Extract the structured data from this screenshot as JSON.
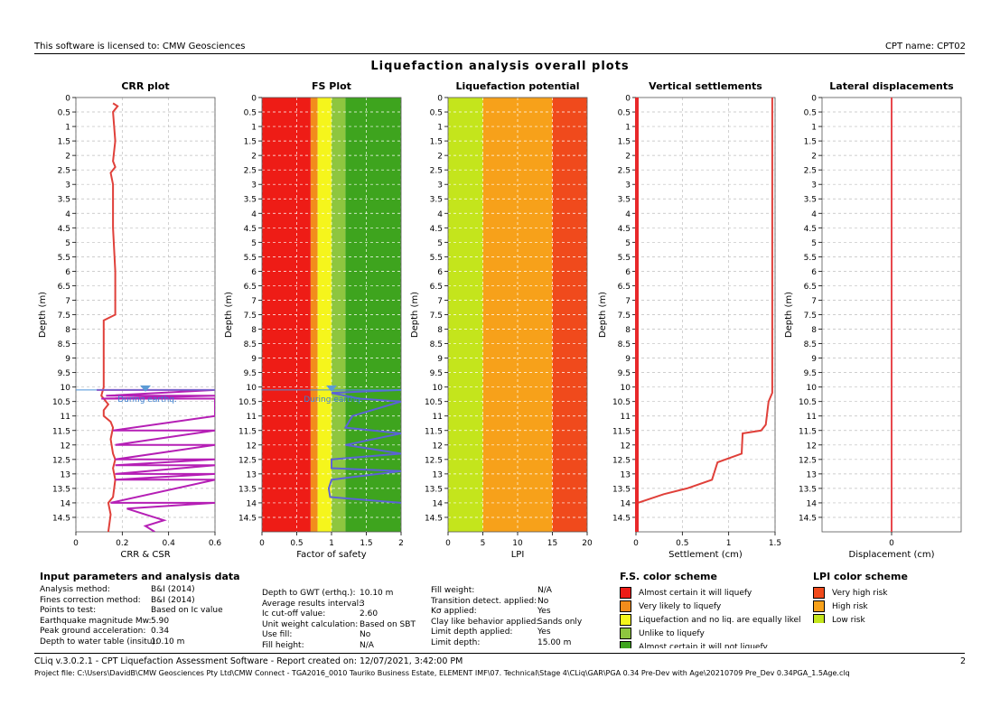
{
  "header": {
    "license_text": "This software is licensed to: CMW Geosciences",
    "cpt_name": "CPT name: CPT02"
  },
  "main_title": "Liquefaction analysis overall plots",
  "chart_data": [
    {
      "type": "line",
      "title": "CRR plot",
      "xlabel": "CRR & CSR",
      "ylabel": "Depth (m)",
      "xlim": [
        0,
        0.6
      ],
      "ylim": [
        0,
        15
      ],
      "x_ticks": [
        "0",
        "0.2",
        "0.4",
        "0.6"
      ],
      "gwt_depth": 10.1,
      "gwt_label": "During earthq.",
      "series": [
        {
          "name": "CRR",
          "color": "#e0403a",
          "points": [
            [
              0.16,
              0.2
            ],
            [
              0.18,
              0.3
            ],
            [
              0.16,
              0.5
            ],
            [
              0.17,
              1.5
            ],
            [
              0.16,
              2.2
            ],
            [
              0.17,
              2.4
            ],
            [
              0.15,
              2.6
            ],
            [
              0.16,
              3.0
            ],
            [
              0.16,
              4.5
            ],
            [
              0.17,
              6.0
            ],
            [
              0.17,
              7.5
            ],
            [
              0.12,
              7.7
            ],
            [
              0.12,
              8.0
            ],
            [
              0.12,
              10.0
            ],
            [
              0.11,
              10.3
            ],
            [
              0.14,
              10.6
            ],
            [
              0.12,
              10.8
            ],
            [
              0.12,
              11.0
            ],
            [
              0.15,
              11.2
            ],
            [
              0.16,
              11.4
            ],
            [
              0.15,
              11.8
            ],
            [
              0.16,
              12.3
            ],
            [
              0.17,
              12.5
            ],
            [
              0.16,
              12.8
            ],
            [
              0.17,
              13.2
            ],
            [
              0.16,
              13.8
            ],
            [
              0.14,
              14.0
            ],
            [
              0.15,
              14.4
            ],
            [
              0.14,
              15.0
            ]
          ]
        },
        {
          "name": "CSR",
          "color": "#b51fb5",
          "points": [
            [
              0.09,
              10.1
            ],
            [
              0.6,
              10.1
            ],
            [
              0.13,
              10.3
            ],
            [
              0.6,
              10.3
            ],
            [
              0.11,
              10.4
            ],
            [
              0.6,
              10.4
            ],
            [
              0.6,
              10.9
            ],
            [
              0.6,
              11.0
            ],
            [
              0.16,
              11.5
            ],
            [
              0.6,
              11.5
            ],
            [
              0.17,
              12.0
            ],
            [
              0.6,
              12.0
            ],
            [
              0.17,
              12.5
            ],
            [
              0.6,
              12.5
            ],
            [
              0.17,
              12.7
            ],
            [
              0.6,
              12.7
            ],
            [
              0.17,
              13.0
            ],
            [
              0.6,
              13.0
            ],
            [
              0.17,
              13.2
            ],
            [
              0.6,
              13.2
            ],
            [
              0.15,
              14.0
            ],
            [
              0.6,
              14.0
            ],
            [
              0.22,
              14.2
            ],
            [
              0.3,
              14.4
            ],
            [
              0.38,
              14.6
            ],
            [
              0.3,
              14.8
            ],
            [
              0.34,
              15.0
            ]
          ]
        }
      ]
    },
    {
      "type": "line",
      "title": "FS Plot",
      "xlabel": "Factor of safety",
      "ylabel": "Depth (m)",
      "xlim": [
        0,
        2
      ],
      "ylim": [
        0,
        15
      ],
      "x_ticks": [
        "0",
        "0.5",
        "1",
        "1.5",
        "2"
      ],
      "gwt_depth": 10.1,
      "gwt_label": "During earthq.",
      "bands": [
        {
          "from": 0,
          "to": 0.7,
          "color": "#ee1c16"
        },
        {
          "from": 0.7,
          "to": 0.8,
          "color": "#f28c1c"
        },
        {
          "from": 0.8,
          "to": 1.0,
          "color": "#f5f51c"
        },
        {
          "from": 1.0,
          "to": 1.2,
          "color": "#8ec63f"
        },
        {
          "from": 1.2,
          "to": 2.0,
          "color": "#3ea41e"
        }
      ],
      "series": [
        {
          "name": "FS",
          "color": "#5b63d6",
          "points": [
            [
              2,
              10.1
            ],
            [
              1.0,
              10.2
            ],
            [
              1.2,
              10.3
            ],
            [
              1.4,
              10.4
            ],
            [
              2,
              10.5
            ],
            [
              1.3,
              11.0
            ],
            [
              1.2,
              11.4
            ],
            [
              2,
              11.6
            ],
            [
              1.2,
              12.0
            ],
            [
              2,
              12.3
            ],
            [
              1.0,
              12.5
            ],
            [
              1.0,
              12.8
            ],
            [
              2,
              12.9
            ],
            [
              1.0,
              13.2
            ],
            [
              0.96,
              13.5
            ],
            [
              0.98,
              13.8
            ],
            [
              2,
              14.0
            ]
          ]
        }
      ]
    },
    {
      "type": "area",
      "title": "Liquefaction potential",
      "xlabel": "LPI",
      "ylabel": "Depth (m)",
      "xlim": [
        0,
        20
      ],
      "ylim": [
        0,
        15
      ],
      "x_ticks": [
        "0",
        "5",
        "10",
        "15",
        "20"
      ],
      "bands": [
        {
          "from": 0,
          "to": 5,
          "color": "#c4e51c"
        },
        {
          "from": 5,
          "to": 15,
          "color": "#f7a11a"
        },
        {
          "from": 15,
          "to": 20,
          "color": "#f04a1c"
        }
      ]
    },
    {
      "type": "line",
      "title": "Vertical settlements",
      "xlabel": "Settlement (cm)",
      "ylabel": "Depth (m)",
      "xlim": [
        0,
        1.5
      ],
      "ylim": [
        0,
        15
      ],
      "x_ticks": [
        "0",
        "0.5",
        "1",
        "1.5"
      ],
      "series": [
        {
          "name": "Cumulative settlement",
          "color": "#e0403a",
          "points": [
            [
              1.47,
              0
            ],
            [
              1.47,
              10.2
            ],
            [
              1.43,
              10.5
            ],
            [
              1.4,
              11.3
            ],
            [
              1.35,
              11.5
            ],
            [
              1.15,
              11.6
            ],
            [
              1.14,
              12.3
            ],
            [
              0.88,
              12.6
            ],
            [
              0.82,
              13.2
            ],
            [
              0.55,
              13.5
            ],
            [
              0.3,
              13.7
            ],
            [
              0.02,
              14.0
            ],
            [
              0,
              14.2
            ],
            [
              0,
              15
            ]
          ]
        }
      ]
    },
    {
      "type": "line",
      "title": "Lateral displacements",
      "xlabel": "Displacement (cm)",
      "ylabel": "Depth (m)",
      "xlim": [
        -1,
        1
      ],
      "ylim": [
        0,
        15
      ],
      "x_ticks": [
        "0"
      ],
      "series": [
        {
          "name": "Lateral displacement",
          "color": "#e8484d",
          "points": [
            [
              0,
              0
            ],
            [
              0,
              15
            ]
          ]
        }
      ]
    }
  ],
  "depth_ticks": [
    "0",
    "0.5",
    "1",
    "1.5",
    "2",
    "2.5",
    "3",
    "3.5",
    "4",
    "4.5",
    "5",
    "5.5",
    "6",
    "6.5",
    "7",
    "7.5",
    "8",
    "8.5",
    "9",
    "9.5",
    "10",
    "10.5",
    "11",
    "11.5",
    "12",
    "12.5",
    "13",
    "13.5",
    "14",
    "14.5"
  ],
  "input_params": {
    "title": "Input parameters and analysis data",
    "col1": [
      {
        "label": "Analysis method:",
        "value": "B&I (2014)"
      },
      {
        "label": "Fines correction method:",
        "value": "B&I (2014)"
      },
      {
        "label": "Points to test:",
        "value": "Based on Ic value"
      },
      {
        "label": "Earthquake magnitude Mw:",
        "value": "5.90"
      },
      {
        "label": "Peak ground acceleration:",
        "value": "0.34"
      },
      {
        "label": "Depth to water table (insitu):",
        "value": "10.10 m"
      }
    ],
    "col2": [
      {
        "label": "Depth to GWT (erthq.):",
        "value": "10.10 m"
      },
      {
        "label": "Average results interval:",
        "value": "3"
      },
      {
        "label": "Ic cut-off value:",
        "value": "2.60"
      },
      {
        "label": "Unit weight calculation:",
        "value": "Based on SBT"
      },
      {
        "label": "Use fill:",
        "value": "No"
      },
      {
        "label": "Fill height:",
        "value": "N/A"
      }
    ],
    "col3": [
      {
        "label": "Fill weight:",
        "value": "N/A"
      },
      {
        "label": "Transition detect. applied:",
        "value": "No"
      },
      {
        "label": "Kσ applied:",
        "value": "Yes"
      },
      {
        "label": "Clay like behavior applied:",
        "value": "Sands only"
      },
      {
        "label": "Limit depth applied:",
        "value": "Yes"
      },
      {
        "label": "Limit depth:",
        "value": "15.00 m"
      }
    ]
  },
  "fs_color_scheme": {
    "title": "F.S. color scheme",
    "items": [
      {
        "label": "Almost certain it will liquefy",
        "color": "#ee1c16"
      },
      {
        "label": "Very likely to liquefy",
        "color": "#f28c1c"
      },
      {
        "label": "Liquefaction and no liq. are equally likely",
        "color": "#f5f51c"
      },
      {
        "label": "Unlike to liquefy",
        "color": "#8ec63f"
      },
      {
        "label": "Almost certain it will not liquefy",
        "color": "#3ea41e"
      }
    ]
  },
  "lpi_color_scheme": {
    "title": "LPI color scheme",
    "items": [
      {
        "label": "Very high risk",
        "color": "#f04a1c"
      },
      {
        "label": "High risk",
        "color": "#f7a11a"
      },
      {
        "label": "Low risk",
        "color": "#c4e51c"
      }
    ]
  },
  "footer": {
    "software_line": "CLiq v.3.0.2.1 - CPT Liquefaction Assessment Software - Report created on: 12/07/2021, 3:42:00 PM",
    "page_number": "2",
    "project_file": "Project file: C:\\Users\\DavidB\\CMW Geosciences Pty Ltd\\CMW Connect - TGA2016_0010 Tauriko Business Estate, ELEMENT IMF\\07. Technical\\Stage 4\\CLiq\\GAR\\PGA 0.34 Pre-Dev with Age\\20210709 Pre_Dev 0.34PGA_1.5Age.clq"
  }
}
